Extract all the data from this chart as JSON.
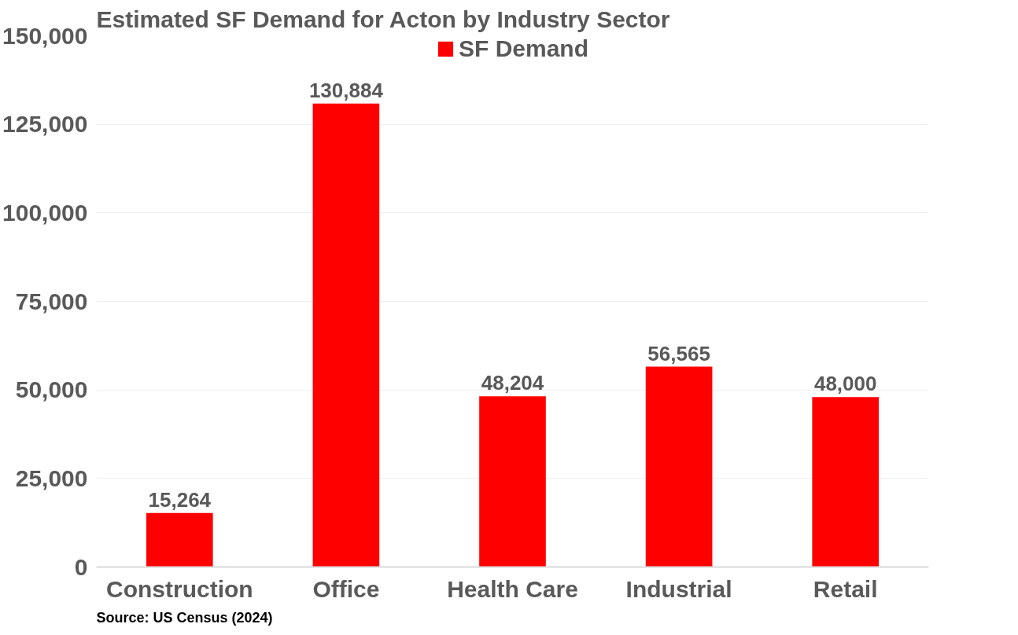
{
  "chart_data": {
    "type": "bar",
    "title": "Estimated SF Demand for Acton by Industry Sector",
    "categories": [
      "Construction",
      "Office",
      "Health Care",
      "Industrial",
      "Retail"
    ],
    "series": [
      {
        "name": "SF Demand",
        "color": "#ff0000",
        "values": [
          15264,
          130884,
          48204,
          56565,
          48000
        ]
      }
    ],
    "ylim": [
      0,
      150000
    ],
    "yticks": [
      {
        "value": 0,
        "label": "0"
      },
      {
        "value": 25000,
        "label": "25,000"
      },
      {
        "value": 50000,
        "label": "50,000"
      },
      {
        "value": 75000,
        "label": "75,000"
      },
      {
        "value": 100000,
        "label": "100,000"
      },
      {
        "value": 125000,
        "label": "125,000"
      },
      {
        "value": 150000,
        "label": "150,000"
      }
    ],
    "value_labels": [
      "15,264",
      "130,884",
      "48,204",
      "56,565",
      "48,000"
    ],
    "grid": "y",
    "legend": "top",
    "annotations": [
      "Source: US Census (2024)"
    ]
  }
}
